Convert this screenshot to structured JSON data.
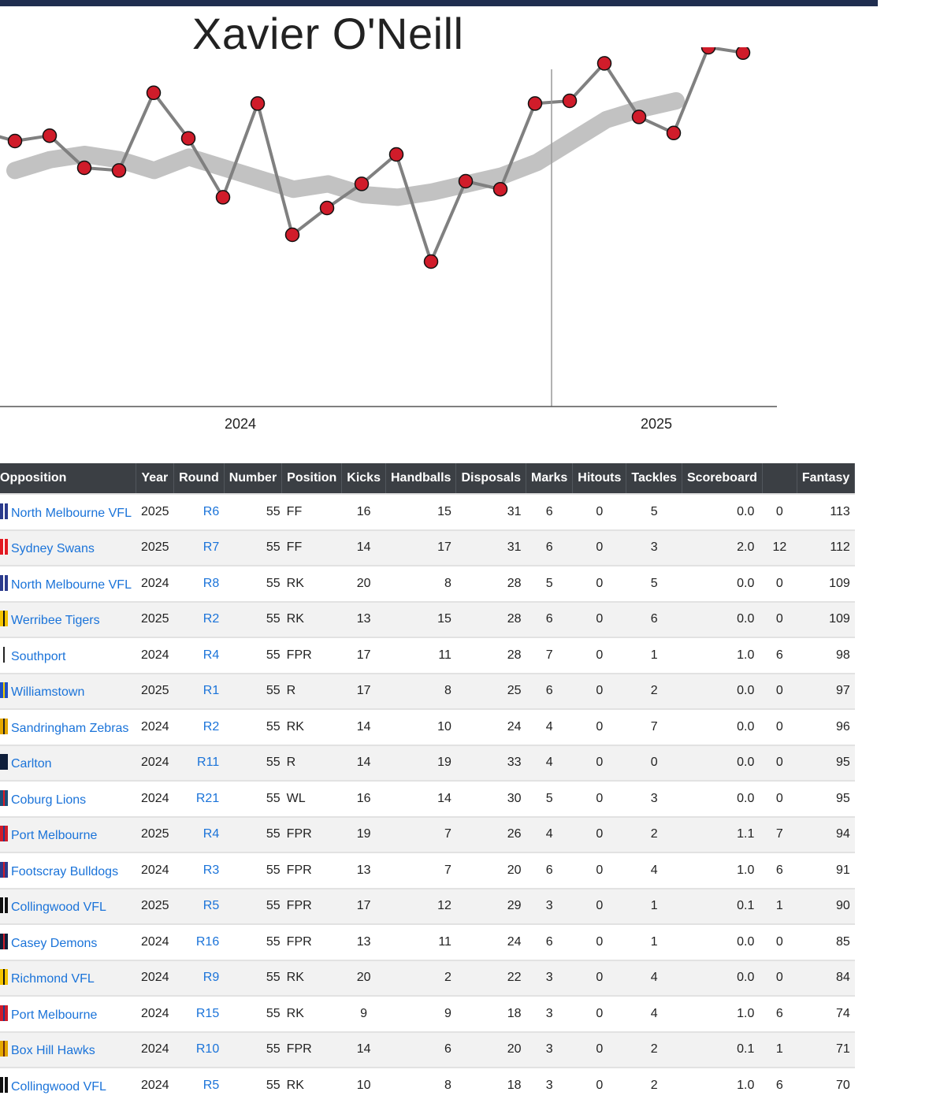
{
  "player_name": "Xavier O'Neill",
  "colors": {
    "header_bar": "#1f2d4f",
    "point_fill": "#d01c2a",
    "line": "#808080",
    "trend": "#c2c2c2",
    "link": "#1a73d9"
  },
  "chart_data": {
    "type": "line",
    "title": "",
    "x_year_labels": [
      "2024",
      "2025"
    ],
    "series": [
      {
        "name": "",
        "values": [
          95,
          97,
          85,
          84,
          113,
          96,
          74,
          109,
          60,
          70,
          79,
          90,
          50,
          80,
          77,
          109,
          110,
          124,
          104,
          98,
          130,
          128
        ]
      }
    ],
    "trend_values": [
      84,
      88,
      90,
      88,
      84,
      89,
      85,
      81,
      77,
      79,
      75,
      74,
      76,
      79,
      82,
      87,
      95,
      103,
      107,
      110
    ]
  },
  "table": {
    "columns": [
      "Opposition",
      "Year",
      "Round",
      "Number",
      "Position",
      "Kicks",
      "Handballs",
      "Disposals",
      "Marks",
      "Hitouts",
      "Tackles",
      "Scoreboard",
      "",
      "Fantasy"
    ],
    "rows": [
      {
        "logo": [
          "#2a3a8c",
          "#ffffff"
        ],
        "opposition": "North Melbourne VFL",
        "year": "2025",
        "round": "R6",
        "number": "55",
        "position": "FF",
        "kicks": "16",
        "handballs": "15",
        "disposals": "31",
        "marks": "6",
        "hitouts": "0",
        "tackles": "5",
        "scoreboard": "0.0",
        "score": "0",
        "fantasy": "113"
      },
      {
        "logo": [
          "#e21a22",
          "#ffffff"
        ],
        "opposition": "Sydney Swans",
        "year": "2025",
        "round": "R7",
        "number": "55",
        "position": "FF",
        "kicks": "14",
        "handballs": "17",
        "disposals": "31",
        "marks": "6",
        "hitouts": "0",
        "tackles": "3",
        "scoreboard": "2.0",
        "score": "12",
        "fantasy": "112"
      },
      {
        "logo": [
          "#2a3a8c",
          "#ffffff"
        ],
        "opposition": "North Melbourne VFL",
        "year": "2024",
        "round": "R8",
        "number": "55",
        "position": "RK",
        "kicks": "20",
        "handballs": "8",
        "disposals": "28",
        "marks": "5",
        "hitouts": "0",
        "tackles": "5",
        "scoreboard": "0.0",
        "score": "0",
        "fantasy": "109"
      },
      {
        "logo": [
          "#f5c400",
          "#111111"
        ],
        "opposition": "Werribee Tigers",
        "year": "2025",
        "round": "R2",
        "number": "55",
        "position": "RK",
        "kicks": "13",
        "handballs": "15",
        "disposals": "28",
        "marks": "6",
        "hitouts": "0",
        "tackles": "6",
        "scoreboard": "0.0",
        "score": "0",
        "fantasy": "109"
      },
      {
        "logo": [
          "#ffffff",
          "#222222"
        ],
        "opposition": "Southport",
        "year": "2024",
        "round": "R4",
        "number": "55",
        "position": "FPR",
        "kicks": "17",
        "handballs": "11",
        "disposals": "28",
        "marks": "7",
        "hitouts": "0",
        "tackles": "1",
        "scoreboard": "1.0",
        "score": "6",
        "fantasy": "98"
      },
      {
        "logo": [
          "#1d4fc4",
          "#f5d000"
        ],
        "opposition": "Williamstown",
        "year": "2025",
        "round": "R1",
        "number": "55",
        "position": "R",
        "kicks": "17",
        "handballs": "8",
        "disposals": "25",
        "marks": "6",
        "hitouts": "0",
        "tackles": "2",
        "scoreboard": "0.0",
        "score": "0",
        "fantasy": "97"
      },
      {
        "logo": [
          "#e5a800",
          "#222222"
        ],
        "opposition": "Sandringham Zebras",
        "year": "2024",
        "round": "R2",
        "number": "55",
        "position": "RK",
        "kicks": "14",
        "handballs": "10",
        "disposals": "24",
        "marks": "4",
        "hitouts": "0",
        "tackles": "7",
        "scoreboard": "0.0",
        "score": "0",
        "fantasy": "96"
      },
      {
        "logo": [
          "#0e1e3a",
          "#0e1e3a"
        ],
        "opposition": "Carlton",
        "year": "2024",
        "round": "R11",
        "number": "55",
        "position": "R",
        "kicks": "14",
        "handballs": "19",
        "disposals": "33",
        "marks": "4",
        "hitouts": "0",
        "tackles": "0",
        "scoreboard": "0.0",
        "score": "0",
        "fantasy": "95"
      },
      {
        "logo": [
          "#1b4f7a",
          "#e21a22"
        ],
        "opposition": "Coburg Lions",
        "year": "2024",
        "round": "R21",
        "number": "55",
        "position": "WL",
        "kicks": "16",
        "handballs": "14",
        "disposals": "30",
        "marks": "5",
        "hitouts": "0",
        "tackles": "3",
        "scoreboard": "0.0",
        "score": "0",
        "fantasy": "95"
      },
      {
        "logo": [
          "#d01c2a",
          "#1d3f8f"
        ],
        "opposition": "Port Melbourne",
        "year": "2025",
        "round": "R4",
        "number": "55",
        "position": "FPR",
        "kicks": "19",
        "handballs": "7",
        "disposals": "26",
        "marks": "4",
        "hitouts": "0",
        "tackles": "2",
        "scoreboard": "1.1",
        "score": "7",
        "fantasy": "94"
      },
      {
        "logo": [
          "#2a3a8c",
          "#d01c2a"
        ],
        "opposition": "Footscray Bulldogs",
        "year": "2024",
        "round": "R3",
        "number": "55",
        "position": "FPR",
        "kicks": "13",
        "handballs": "7",
        "disposals": "20",
        "marks": "6",
        "hitouts": "0",
        "tackles": "4",
        "scoreboard": "1.0",
        "score": "6",
        "fantasy": "91"
      },
      {
        "logo": [
          "#111111",
          "#ffffff"
        ],
        "opposition": "Collingwood VFL",
        "year": "2025",
        "round": "R5",
        "number": "55",
        "position": "FPR",
        "kicks": "17",
        "handballs": "12",
        "disposals": "29",
        "marks": "3",
        "hitouts": "0",
        "tackles": "1",
        "scoreboard": "0.1",
        "score": "1",
        "fantasy": "90"
      },
      {
        "logo": [
          "#0e1e3a",
          "#d01c2a"
        ],
        "opposition": "Casey Demons",
        "year": "2024",
        "round": "R16",
        "number": "55",
        "position": "FPR",
        "kicks": "13",
        "handballs": "11",
        "disposals": "24",
        "marks": "6",
        "hitouts": "0",
        "tackles": "1",
        "scoreboard": "0.0",
        "score": "0",
        "fantasy": "85"
      },
      {
        "logo": [
          "#f5c400",
          "#111111"
        ],
        "opposition": "Richmond VFL",
        "year": "2024",
        "round": "R9",
        "number": "55",
        "position": "RK",
        "kicks": "20",
        "handballs": "2",
        "disposals": "22",
        "marks": "3",
        "hitouts": "0",
        "tackles": "4",
        "scoreboard": "0.0",
        "score": "0",
        "fantasy": "84"
      },
      {
        "logo": [
          "#d01c2a",
          "#1d3f8f"
        ],
        "opposition": "Port Melbourne",
        "year": "2024",
        "round": "R15",
        "number": "55",
        "position": "RK",
        "kicks": "9",
        "handballs": "9",
        "disposals": "18",
        "marks": "3",
        "hitouts": "0",
        "tackles": "4",
        "scoreboard": "1.0",
        "score": "6",
        "fantasy": "74"
      },
      {
        "logo": [
          "#e5a800",
          "#6b2a10"
        ],
        "opposition": "Box Hill Hawks",
        "year": "2024",
        "round": "R10",
        "number": "55",
        "position": "FPR",
        "kicks": "14",
        "handballs": "6",
        "disposals": "20",
        "marks": "3",
        "hitouts": "0",
        "tackles": "2",
        "scoreboard": "0.1",
        "score": "1",
        "fantasy": "71"
      },
      {
        "logo": [
          "#111111",
          "#ffffff"
        ],
        "opposition": "Collingwood VFL",
        "year": "2024",
        "round": "R5",
        "number": "55",
        "position": "RK",
        "kicks": "10",
        "handballs": "8",
        "disposals": "18",
        "marks": "3",
        "hitouts": "0",
        "tackles": "2",
        "scoreboard": "1.0",
        "score": "6",
        "fantasy": "70"
      }
    ]
  }
}
